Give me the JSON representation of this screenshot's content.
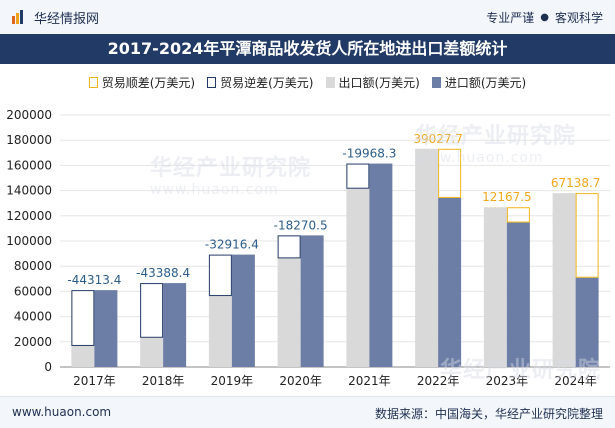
{
  "header": {
    "brand": "华经情报网",
    "slogan_left": "专业严谨",
    "slogan_dot": "●",
    "slogan_right": "客观科学"
  },
  "title": "2017-2024年平潭商品收发货人所在地进出口差额统计",
  "legend": {
    "surplus": "贸易顺差(万美元)",
    "deficit": "贸易逆差(万美元)",
    "export": "出口额(万美元)",
    "import": "进口额(万美元)"
  },
  "watermark": {
    "text": "华经产业研究院",
    "url": "www.huaon.com"
  },
  "footer": {
    "site": "www.huaon.com",
    "source": "数据来源：中国海关，华经产业研究院整理"
  },
  "colors": {
    "export": "#d9d9d9",
    "import": "#6c7ea6",
    "surplus": "#f0b41c",
    "deficit": "#223a66",
    "label_deficit": "#2c5d8a",
    "label_surplus": "#f0a81c"
  },
  "chart_data": {
    "type": "bar",
    "categories": [
      "2017年",
      "2018年",
      "2019年",
      "2020年",
      "2021年",
      "2022年",
      "2023年",
      "2024年"
    ],
    "series": [
      {
        "name": "出口额(万美元)",
        "values": [
          16700,
          23200,
          56300,
          86200,
          141500,
          173200,
          126800,
          138000
        ]
      },
      {
        "name": "进口额(万美元)",
        "values": [
          61013.4,
          66588.4,
          89216.4,
          104470.5,
          161468.3,
          134172.3,
          114632.5,
          70861.3
        ]
      }
    ],
    "balance": {
      "labels": [
        "-44313.4",
        "-43388.4",
        "-32916.4",
        "-18270.5",
        "-19968.3",
        "39027.7",
        "12167.5",
        "67138.7"
      ],
      "values": [
        -44313.4,
        -43388.4,
        -32916.4,
        -18270.5,
        -19968.3,
        39027.7,
        12167.5,
        67138.7
      ]
    },
    "ylim": [
      0,
      200000
    ],
    "yticks": [
      "0",
      "20000",
      "40000",
      "60000",
      "80000",
      "100000",
      "120000",
      "140000",
      "160000",
      "180000",
      "200000"
    ],
    "grid": true,
    "legend_position": "top"
  }
}
